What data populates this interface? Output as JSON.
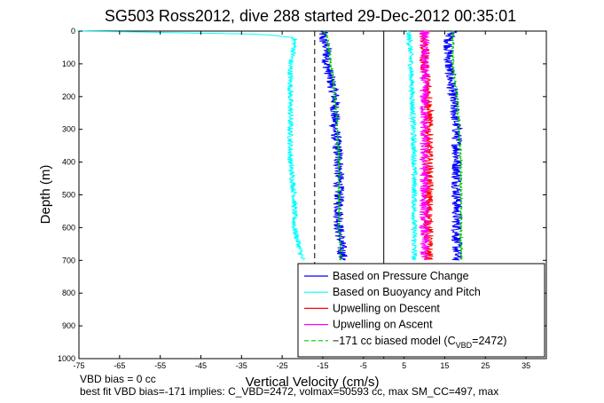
{
  "chart_data": {
    "type": "line",
    "title": "SG503 Ross2012, dive 288 started 29-Dec-2012 00:35:01",
    "xlabel": "Vertical Velocity (cm/s)",
    "ylabel": "Depth (m)",
    "xlim": [
      -75,
      40
    ],
    "ylim": [
      0,
      1000
    ],
    "y_reversed": true,
    "xticks": [
      "-75",
      "-65",
      "-55",
      "-45",
      "-35",
      "-25",
      "-15",
      "-5",
      "5",
      "15",
      "25",
      "35"
    ],
    "yticks": [
      "0",
      "100",
      "200",
      "300",
      "400",
      "500",
      "600",
      "700",
      "800",
      "900",
      "1000"
    ],
    "grid": false,
    "legend_position": "bottom-right",
    "reference_lines": [
      {
        "x": -17,
        "style": "dashed",
        "color": "#000000"
      },
      {
        "x": 0,
        "style": "solid",
        "color": "#000000"
      }
    ],
    "series": [
      {
        "name": "Based on Pressure Change",
        "color": "#0000ff",
        "style": "solid",
        "noise": 1.3,
        "branches": [
          {
            "depth": [
              0,
              25,
              50,
              100,
              150,
              200,
              300,
              400,
              500,
              600,
              700
            ],
            "values": [
              -15,
              -15,
              -14,
              -14,
              -13,
              -12,
              -12,
              -11,
              -11,
              -11,
              -10
            ]
          },
          {
            "depth": [
              0,
              25,
              50,
              100,
              200,
              300,
              400,
              500,
              600,
              700
            ],
            "values": [
              17,
              16,
              16,
              16,
              17,
              18,
              18,
              18,
              18,
              18
            ]
          }
        ]
      },
      {
        "name": "Based on Buoyancy and Pitch",
        "color": "#00ffff",
        "style": "solid",
        "noise": 0.7,
        "branches": [
          {
            "depth": [
              0,
              5,
              10,
              20,
              50,
              100,
              200,
              300,
              400,
              500,
              600,
              650,
              700
            ],
            "values": [
              -75,
              -50,
              -30,
              -22,
              -22,
              -23,
              -23,
              -23,
              -23,
              -22,
              -22,
              -21,
              -20
            ]
          },
          {
            "depth": [
              0,
              50,
              200,
              400,
              600,
              700
            ],
            "values": [
              6,
              6.5,
              7,
              7.5,
              7.5,
              7.5
            ]
          }
        ]
      },
      {
        "name": "Upwelling on Descent",
        "color": "#ff0000",
        "style": "solid",
        "noise": 1.2,
        "branches": [
          {
            "depth": [
              0,
              50,
              100,
              200,
              300,
              400,
              500,
              600,
              700
            ],
            "values": [
              10,
              10,
              10,
              11,
              11,
              11,
              11,
              11,
              11
            ]
          }
        ]
      },
      {
        "name": "Upwelling on Ascent",
        "color": "#ff00ff",
        "style": "solid",
        "noise": 1.2,
        "branches": [
          {
            "depth": [
              0,
              50,
              100,
              200,
              300,
              400,
              500,
              600,
              700
            ],
            "values": [
              10,
              10,
              10,
              10,
              10,
              10,
              10,
              10,
              10
            ]
          }
        ]
      },
      {
        "name": "−171 cc biased model (C",
        "name_sub": "VBD",
        "name_tail": "=2472)",
        "color": "#00cc00",
        "style": "dashed",
        "noise": 0.25,
        "branches": [
          {
            "depth": [
              0,
              10,
              50,
              100,
              200,
              300,
              400,
              500,
              600,
              700
            ],
            "values": [
              -15,
              -14,
              -13.5,
              -13,
              -12,
              -11.5,
              -11,
              -11,
              -11,
              -10.5
            ]
          },
          {
            "depth": [
              0,
              10,
              50,
              100,
              200,
              300,
              400,
              500,
              600,
              700
            ],
            "values": [
              17,
              17,
              17,
              17,
              18,
              18.5,
              19,
              19,
              19,
              19
            ]
          }
        ]
      }
    ]
  },
  "notes": {
    "line1": "VBD bias = 0 cc",
    "line2": "best fit VBD bias=-171 implies: C_VBD=2472, volmax=50593 cc, max SM_CC=497, max"
  }
}
